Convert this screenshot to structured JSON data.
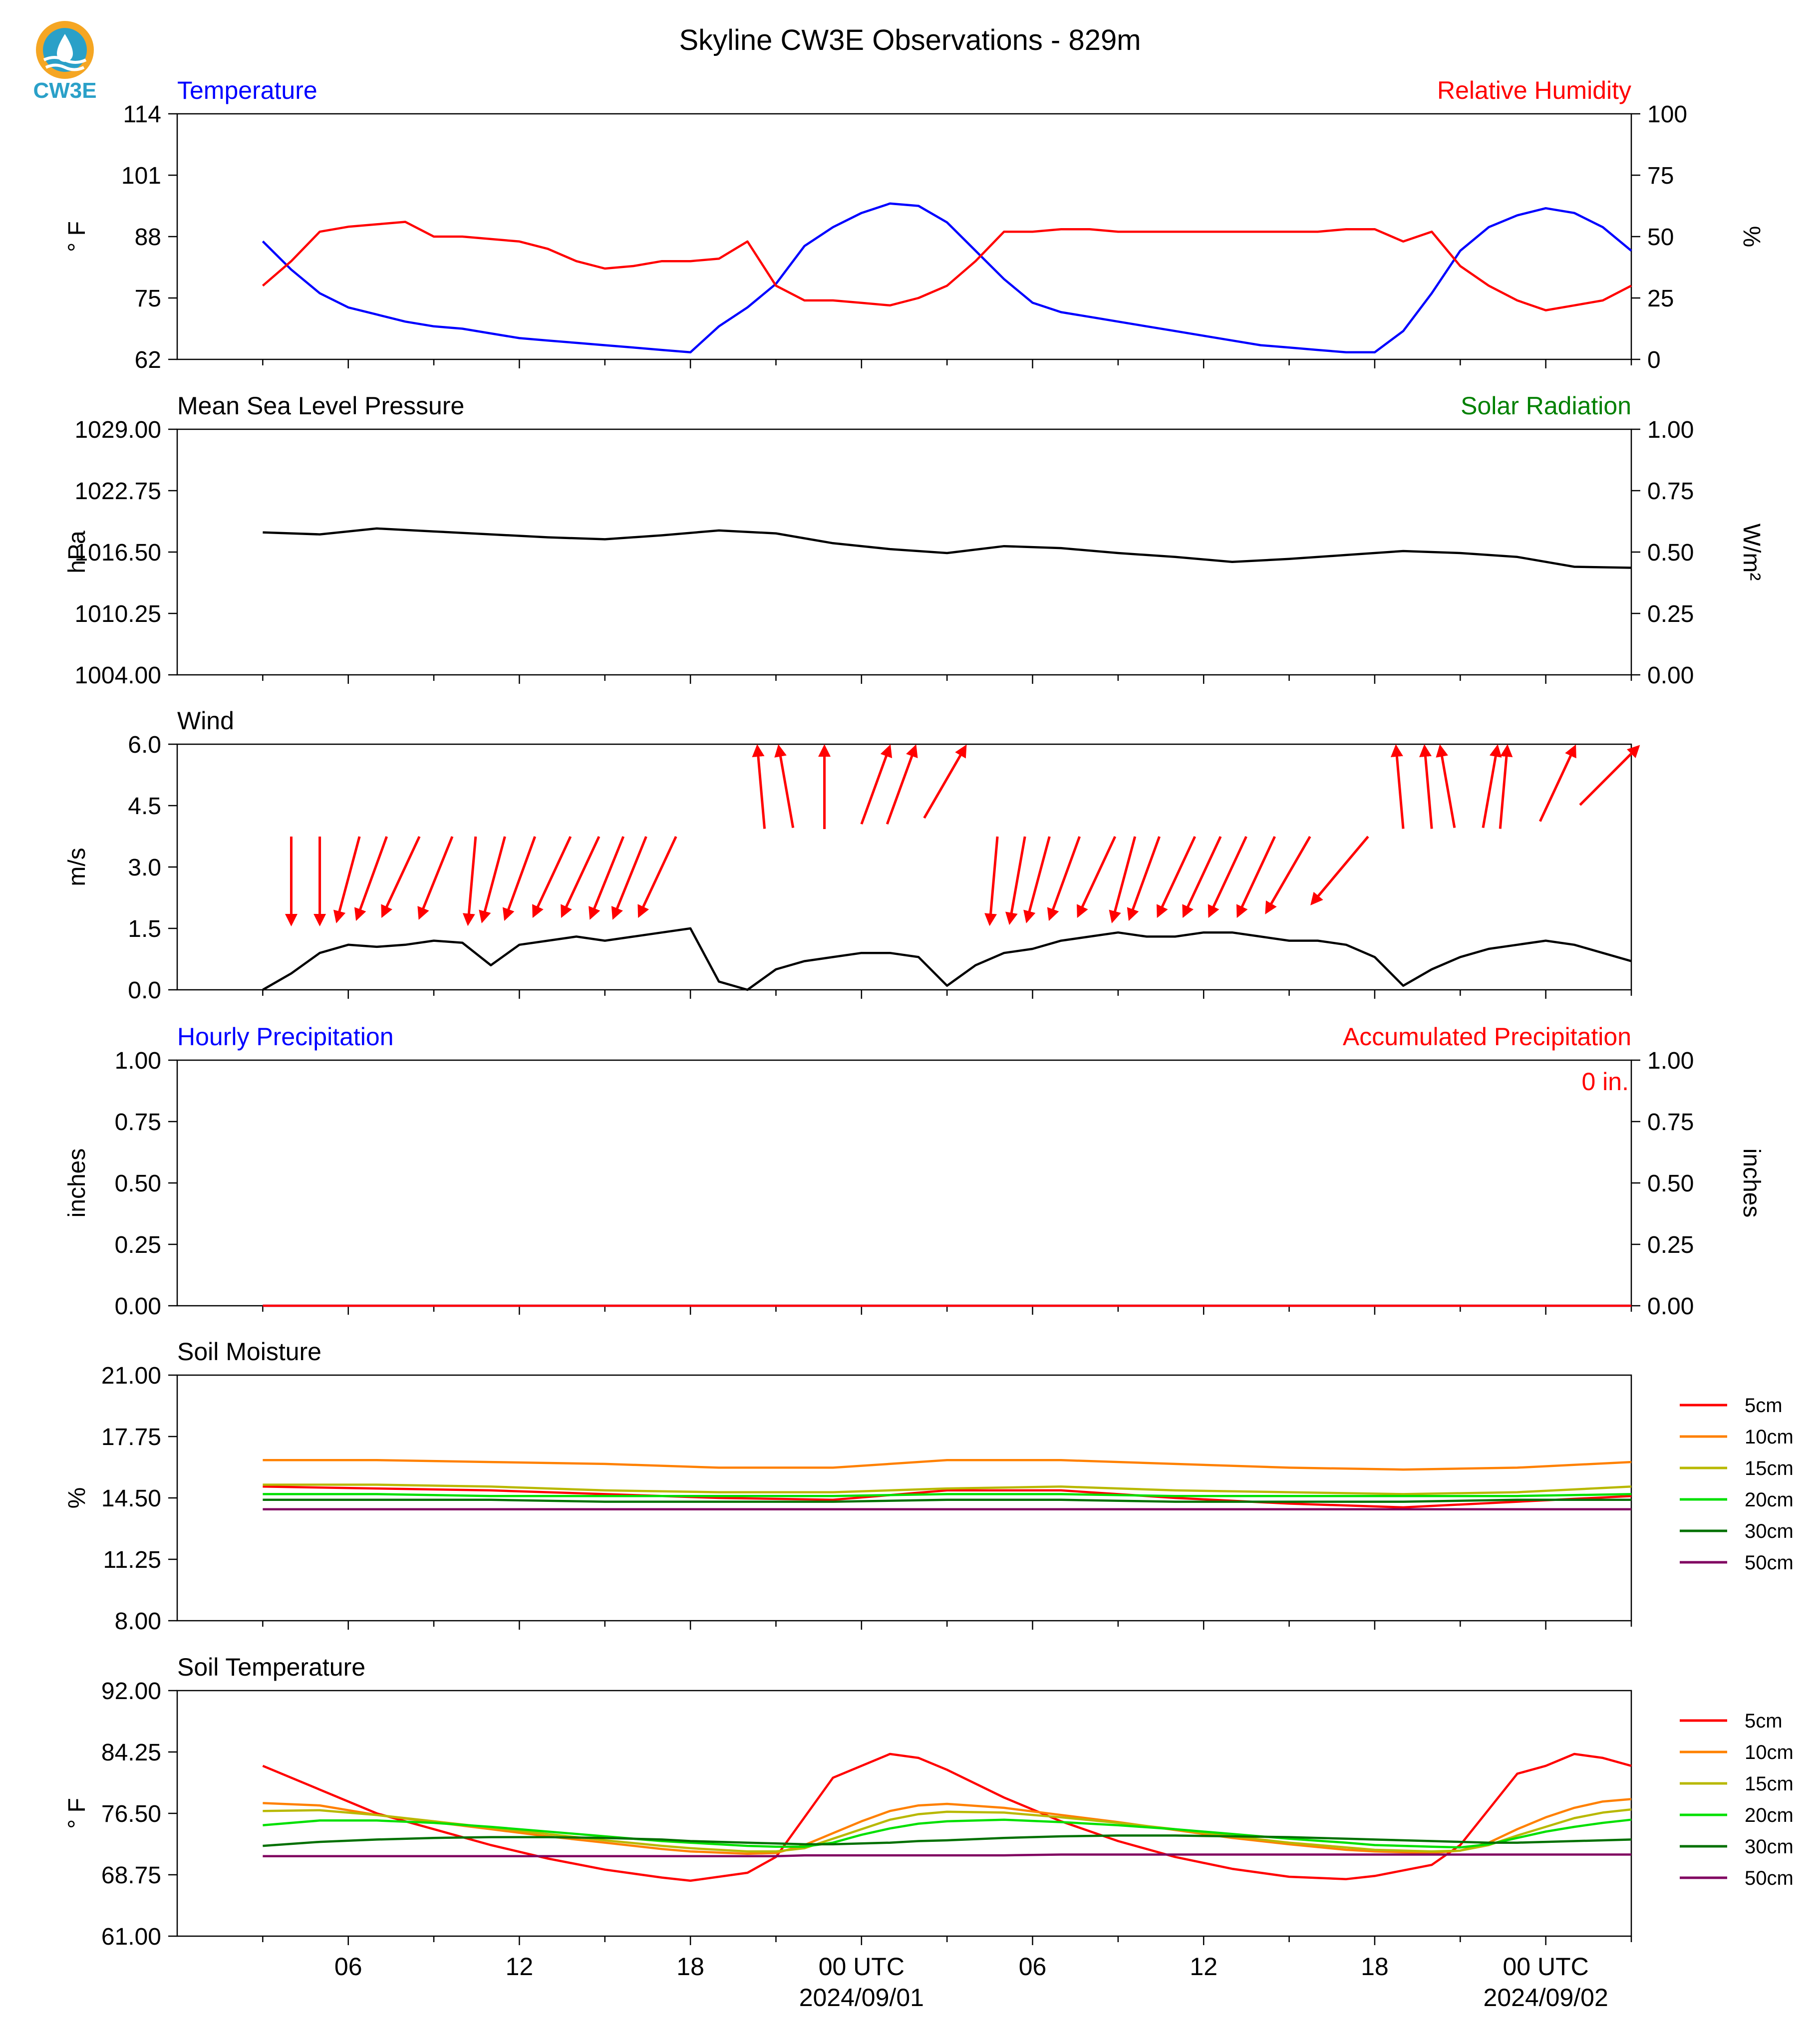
{
  "title": "Skyline CW3E Observations - 829m",
  "logo": {
    "text": "CW3E",
    "icon": "cw3e-logo-icon",
    "color": "#2aa0c8",
    "accent": "#f5a623"
  },
  "time_axis": {
    "labels": [
      "06",
      "12",
      "18",
      "00 UTC",
      "06",
      "12",
      "18",
      "00 UTC"
    ],
    "dates": [
      "2024/09/01",
      "2024/09/02"
    ]
  },
  "chart_data": [
    {
      "type": "line",
      "title_left": "Temperature",
      "title_right": "Relative Humidity",
      "ylabel": "° F",
      "ylabel_right": "%",
      "ylim": [
        62,
        114
      ],
      "ylim_right": [
        0,
        100
      ],
      "yticks": [
        "114",
        "101",
        "88",
        "75",
        "62"
      ],
      "yticks_right": [
        "100",
        "75",
        "50",
        "25",
        "0"
      ],
      "x_hours": [
        0,
        1,
        2,
        3,
        4,
        5,
        6,
        7,
        8,
        9,
        10,
        11,
        12,
        13,
        14,
        15,
        16,
        17,
        18,
        19,
        20,
        21,
        22,
        23,
        24,
        25,
        26,
        27,
        28,
        29,
        30,
        31,
        32,
        33,
        34,
        35,
        36,
        37,
        38,
        39,
        40,
        41,
        42,
        43,
        44,
        45,
        46,
        47,
        48
      ],
      "series": [
        {
          "name": "Temperature",
          "color": "#0000ff",
          "axis": "left",
          "values": [
            87,
            81,
            76,
            73,
            71.5,
            70,
            69,
            68.5,
            67.5,
            66.5,
            66,
            65.5,
            65,
            64.5,
            64,
            63.5,
            69,
            73,
            78,
            86,
            90,
            93,
            95,
            94.5,
            91,
            85,
            79,
            74,
            72,
            71,
            70,
            69,
            68,
            67,
            66,
            65,
            64.5,
            64,
            63.5,
            63.5,
            68,
            76,
            85,
            90,
            92.5,
            94,
            93,
            90,
            85
          ]
        },
        {
          "name": "Relative Humidity",
          "color": "#ff0000",
          "axis": "right",
          "values": [
            30,
            40,
            52,
            54,
            55,
            56,
            50,
            50,
            49,
            48,
            45,
            40,
            37,
            38,
            40,
            40,
            41,
            48,
            30,
            24,
            24,
            23,
            22,
            25,
            30,
            40,
            52,
            52,
            53,
            53,
            52,
            52,
            52,
            52,
            52,
            52,
            52,
            52,
            53,
            53,
            48,
            52,
            38,
            30,
            24,
            20,
            22,
            24,
            30
          ]
        }
      ]
    },
    {
      "type": "line",
      "title_left": "Mean Sea Level Pressure",
      "title_right": "Solar Radiation",
      "ylabel": "hPa",
      "ylabel_right": "W/m²",
      "ylim": [
        1004,
        1029
      ],
      "ylim_right": [
        0,
        1
      ],
      "yticks": [
        "1029.00",
        "1022.75",
        "1016.50",
        "1010.25",
        "1004.00"
      ],
      "yticks_right": [
        "1.00",
        "0.75",
        "0.50",
        "0.25",
        "0.00"
      ],
      "x_hours": [
        0,
        2,
        4,
        6,
        8,
        10,
        12,
        14,
        16,
        18,
        20,
        22,
        24,
        26,
        28,
        30,
        32,
        34,
        36,
        38,
        40,
        42,
        44,
        46,
        48
      ],
      "series": [
        {
          "name": "Pressure",
          "color": "#000000",
          "axis": "left",
          "values": [
            1018.5,
            1018.3,
            1018.9,
            1018.6,
            1018.3,
            1018.0,
            1017.8,
            1018.2,
            1018.7,
            1018.4,
            1017.4,
            1016.8,
            1016.4,
            1017.1,
            1016.9,
            1016.4,
            1016.0,
            1015.5,
            1015.8,
            1016.2,
            1016.6,
            1016.4,
            1016.0,
            1015.0,
            1014.9
          ]
        }
      ]
    },
    {
      "type": "line",
      "title_left": "Wind",
      "ylabel": "m/s",
      "ylim": [
        0,
        6
      ],
      "yticks": [
        "6.0",
        "4.5",
        "3.0",
        "1.5",
        "0.0"
      ],
      "x_hours": [
        0,
        1,
        2,
        3,
        4,
        5,
        6,
        7,
        8,
        9,
        10,
        11,
        12,
        13,
        14,
        15,
        16,
        17,
        18,
        19,
        20,
        21,
        22,
        23,
        24,
        25,
        26,
        27,
        28,
        29,
        30,
        31,
        32,
        33,
        34,
        35,
        36,
        37,
        38,
        39,
        40,
        41,
        42,
        43,
        44,
        45,
        46,
        47,
        48
      ],
      "series": [
        {
          "name": "Wind Speed",
          "color": "#000000",
          "axis": "left",
          "values": [
            0.0,
            0.4,
            0.9,
            1.1,
            1.05,
            1.1,
            1.2,
            1.15,
            0.6,
            1.1,
            1.2,
            1.3,
            1.2,
            1.3,
            1.4,
            1.5,
            0.2,
            0.0,
            0.5,
            0.7,
            0.8,
            0.9,
            0.9,
            0.8,
            0.1,
            0.6,
            0.9,
            1.0,
            1.2,
            1.3,
            1.4,
            1.3,
            1.3,
            1.4,
            1.4,
            1.3,
            1.2,
            1.2,
            1.1,
            0.8,
            0.1,
            0.5,
            0.8,
            1.0,
            1.1,
            1.2,
            1.1,
            0.9,
            0.7
          ]
        }
      ],
      "wind_barbs": [
        {
          "h": 1.0,
          "dir": 0
        },
        {
          "h": 2.0,
          "dir": 0
        },
        {
          "h": 2.6,
          "dir": 15
        },
        {
          "h": 3.3,
          "dir": 20
        },
        {
          "h": 4.2,
          "dir": 25
        },
        {
          "h": 5.5,
          "dir": 22
        },
        {
          "h": 7.2,
          "dir": 5
        },
        {
          "h": 7.7,
          "dir": 15
        },
        {
          "h": 8.5,
          "dir": 20
        },
        {
          "h": 9.5,
          "dir": 25
        },
        {
          "h": 10.5,
          "dir": 25
        },
        {
          "h": 11.5,
          "dir": 22
        },
        {
          "h": 12.3,
          "dir": 22
        },
        {
          "h": 13.2,
          "dir": 25
        },
        {
          "h": 17.6,
          "dir": 175
        },
        {
          "h": 18.6,
          "dir": 170
        },
        {
          "h": 19.7,
          "dir": 180
        },
        {
          "h": 21.0,
          "dir": 200
        },
        {
          "h": 21.9,
          "dir": 200
        },
        {
          "h": 23.2,
          "dir": 210
        },
        {
          "h": 25.5,
          "dir": 5
        },
        {
          "h": 26.2,
          "dir": 10
        },
        {
          "h": 26.8,
          "dir": 15
        },
        {
          "h": 27.6,
          "dir": 20
        },
        {
          "h": 28.6,
          "dir": 25
        },
        {
          "h": 29.8,
          "dir": 15
        },
        {
          "h": 30.4,
          "dir": 20
        },
        {
          "h": 31.4,
          "dir": 25
        },
        {
          "h": 32.3,
          "dir": 25
        },
        {
          "h": 33.2,
          "dir": 25
        },
        {
          "h": 34.2,
          "dir": 25
        },
        {
          "h": 35.2,
          "dir": 30
        },
        {
          "h": 36.8,
          "dir": 40
        },
        {
          "h": 40.0,
          "dir": 175
        },
        {
          "h": 41.0,
          "dir": 175
        },
        {
          "h": 41.8,
          "dir": 170
        },
        {
          "h": 42.8,
          "dir": 190
        },
        {
          "h": 43.4,
          "dir": 185
        },
        {
          "h": 44.8,
          "dir": 205
        },
        {
          "h": 46.2,
          "dir": 225
        }
      ]
    },
    {
      "type": "line",
      "title_left": "Hourly Precipitation",
      "title_right": "Accumulated Precipitation",
      "annotation": "0 in.",
      "ylabel": "inches",
      "ylabel_right": "inches",
      "ylim": [
        0,
        1
      ],
      "ylim_right": [
        0,
        1
      ],
      "yticks": [
        "1.00",
        "0.75",
        "0.50",
        "0.25",
        "0.00"
      ],
      "yticks_right": [
        "1.00",
        "0.75",
        "0.50",
        "0.25",
        "0.00"
      ],
      "x_hours": [
        0,
        48
      ],
      "series": [
        {
          "name": "Hourly Precipitation",
          "color": "#0000ff",
          "axis": "left",
          "values": [
            0,
            0
          ]
        },
        {
          "name": "Accumulated Precipitation",
          "color": "#ff0000",
          "axis": "right",
          "values": [
            0,
            0
          ]
        }
      ]
    },
    {
      "type": "line",
      "title_left": "Soil Moisture",
      "ylabel": "%",
      "ylim": [
        8,
        21
      ],
      "yticks": [
        "21.00",
        "17.75",
        "14.50",
        "11.25",
        "8.00"
      ],
      "legend": "right",
      "x_hours": [
        0,
        4,
        8,
        12,
        16,
        20,
        24,
        28,
        32,
        36,
        40,
        44,
        48
      ],
      "series": [
        {
          "name": "5cm",
          "color": "#ff0000",
          "values": [
            15.1,
            15.0,
            14.9,
            14.7,
            14.5,
            14.4,
            14.9,
            14.9,
            14.5,
            14.2,
            14.0,
            14.3,
            14.6
          ]
        },
        {
          "name": "10cm",
          "color": "#ff8000",
          "values": [
            16.5,
            16.5,
            16.4,
            16.3,
            16.1,
            16.1,
            16.5,
            16.5,
            16.3,
            16.1,
            16.0,
            16.1,
            16.4
          ]
        },
        {
          "name": "15cm",
          "color": "#b8b800",
          "values": [
            15.2,
            15.2,
            15.1,
            14.9,
            14.8,
            14.8,
            15.0,
            15.1,
            14.9,
            14.8,
            14.7,
            14.8,
            15.1
          ]
        },
        {
          "name": "20cm",
          "color": "#00e000",
          "values": [
            14.7,
            14.7,
            14.6,
            14.6,
            14.6,
            14.6,
            14.7,
            14.7,
            14.6,
            14.6,
            14.6,
            14.6,
            14.7
          ]
        },
        {
          "name": "30cm",
          "color": "#007000",
          "values": [
            14.4,
            14.4,
            14.4,
            14.3,
            14.3,
            14.3,
            14.4,
            14.4,
            14.3,
            14.3,
            14.3,
            14.4,
            14.4
          ]
        },
        {
          "name": "50cm",
          "color": "#800060",
          "values": [
            13.9,
            13.9,
            13.9,
            13.9,
            13.9,
            13.9,
            13.9,
            13.9,
            13.9,
            13.9,
            13.9,
            13.9,
            13.9
          ]
        }
      ]
    },
    {
      "type": "line",
      "title_left": "Soil Temperature",
      "ylabel": "° F",
      "ylim": [
        61,
        92
      ],
      "yticks": [
        "92.00",
        "84.25",
        "76.50",
        "68.75",
        "61.00"
      ],
      "legend": "right",
      "x_hours": [
        0,
        2,
        4,
        6,
        8,
        10,
        12,
        14,
        15,
        17,
        18,
        19,
        20,
        21,
        22,
        23,
        24,
        26,
        28,
        30,
        32,
        34,
        36,
        38,
        39,
        41,
        42,
        43,
        44,
        45,
        46,
        47,
        48
      ],
      "series": [
        {
          "name": "5cm",
          "color": "#ff0000",
          "values": [
            82.5,
            79.5,
            76.5,
            74.5,
            72.5,
            70.8,
            69.4,
            68.4,
            68.0,
            69.0,
            71.0,
            76.0,
            81.0,
            82.5,
            84.0,
            83.5,
            82.0,
            78.5,
            75.5,
            73.0,
            71.0,
            69.5,
            68.5,
            68.2,
            68.6,
            70.0,
            72.5,
            77.0,
            81.5,
            82.5,
            84.0,
            83.5,
            82.5
          ]
        },
        {
          "name": "10cm",
          "color": "#ff8000",
          "values": [
            77.8,
            77.5,
            76.3,
            75.4,
            74.5,
            73.6,
            72.8,
            72.0,
            71.7,
            71.4,
            71.5,
            72.5,
            74.0,
            75.5,
            76.8,
            77.5,
            77.7,
            77.2,
            76.3,
            75.4,
            74.4,
            73.4,
            72.6,
            71.9,
            71.7,
            71.5,
            71.8,
            72.8,
            74.5,
            76.0,
            77.2,
            78.0,
            78.3
          ]
        },
        {
          "name": "15cm",
          "color": "#b8b800",
          "values": [
            76.8,
            76.9,
            76.3,
            75.5,
            74.7,
            73.9,
            73.1,
            72.4,
            72.1,
            71.7,
            71.7,
            72.1,
            73.3,
            74.5,
            75.7,
            76.4,
            76.7,
            76.6,
            76.0,
            75.3,
            74.5,
            73.6,
            72.8,
            72.2,
            71.9,
            71.7,
            71.8,
            72.5,
            73.7,
            74.8,
            75.9,
            76.6,
            77.0
          ]
        },
        {
          "name": "20cm",
          "color": "#00e000",
          "values": [
            75.0,
            75.6,
            75.6,
            75.3,
            74.8,
            74.2,
            73.6,
            73.0,
            72.8,
            72.4,
            72.3,
            72.3,
            72.8,
            73.8,
            74.6,
            75.2,
            75.5,
            75.7,
            75.4,
            75.0,
            74.5,
            73.9,
            73.3,
            72.8,
            72.5,
            72.3,
            72.2,
            72.6,
            73.4,
            74.2,
            74.8,
            75.3,
            75.7
          ]
        },
        {
          "name": "30cm",
          "color": "#007000",
          "values": [
            72.4,
            72.9,
            73.2,
            73.4,
            73.5,
            73.5,
            73.4,
            73.2,
            73.0,
            72.8,
            72.7,
            72.6,
            72.6,
            72.7,
            72.8,
            73.0,
            73.1,
            73.4,
            73.6,
            73.7,
            73.7,
            73.6,
            73.5,
            73.3,
            73.2,
            73.0,
            72.9,
            72.8,
            72.8,
            72.9,
            73.0,
            73.1,
            73.2
          ]
        },
        {
          "name": "50cm",
          "color": "#800060",
          "values": [
            71.1,
            71.1,
            71.1,
            71.1,
            71.1,
            71.1,
            71.1,
            71.1,
            71.1,
            71.1,
            71.1,
            71.2,
            71.2,
            71.2,
            71.2,
            71.2,
            71.2,
            71.2,
            71.3,
            71.3,
            71.3,
            71.3,
            71.3,
            71.3,
            71.3,
            71.3,
            71.3,
            71.3,
            71.3,
            71.3,
            71.3,
            71.3,
            71.3
          ]
        }
      ]
    }
  ]
}
